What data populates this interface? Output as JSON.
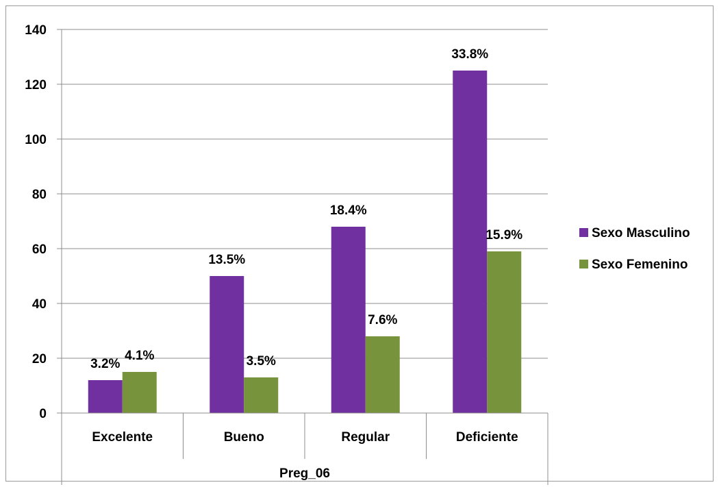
{
  "chart_data": {
    "type": "bar",
    "title": "",
    "xlabel": "Preg_06",
    "ylabel": "",
    "ylim": [
      0,
      140
    ],
    "yticks": [
      0,
      20,
      40,
      60,
      80,
      100,
      120,
      140
    ],
    "grid": true,
    "legend_position": "right",
    "categories": [
      "Excelente",
      "Bueno",
      "Regular",
      "Deficiente"
    ],
    "series": [
      {
        "name": "Sexo Masculino",
        "color": "#7030A0",
        "values": [
          12,
          50,
          68,
          125
        ],
        "labels": [
          "3.2%",
          "13.5%",
          "18.4%",
          "33.8%"
        ]
      },
      {
        "name": "Sexo Femenino",
        "color": "#77933C",
        "values": [
          15,
          13,
          28,
          59
        ],
        "labels": [
          "4.1%",
          "3.5%",
          "7.6%",
          "15.9%"
        ]
      }
    ]
  }
}
